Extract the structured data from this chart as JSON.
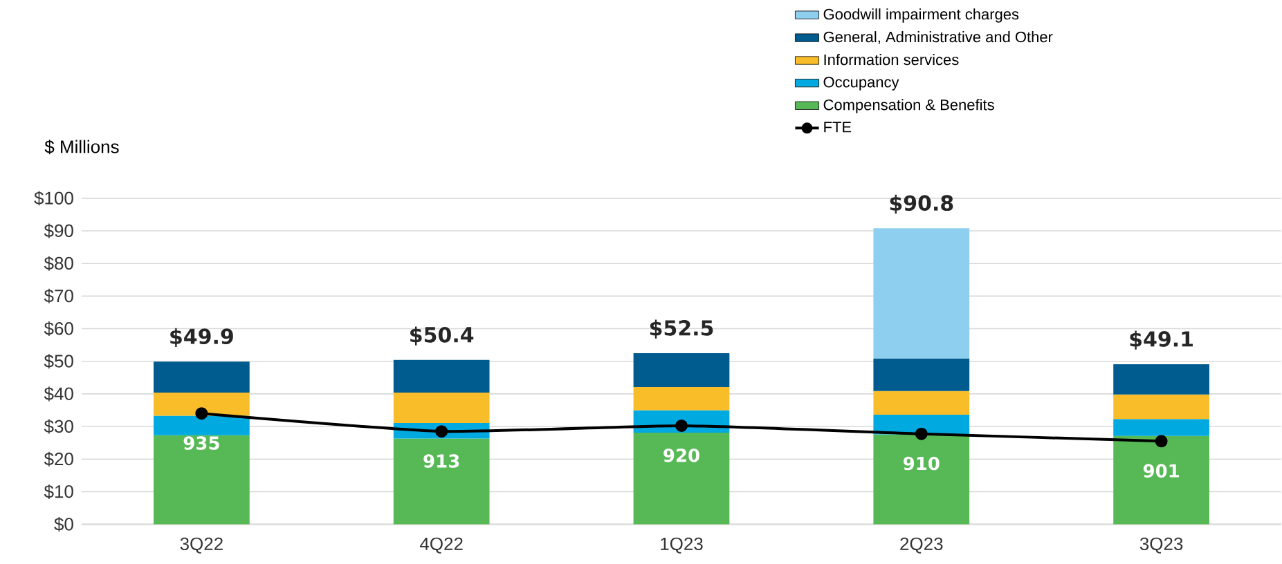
{
  "chart_data": {
    "type": "bar",
    "stacked": true,
    "ylabel": "$ Millions",
    "categories": [
      "3Q22",
      "4Q22",
      "1Q23",
      "2Q23",
      "3Q23"
    ],
    "series": [
      {
        "name": "Compensation & Benefits",
        "color": "#56b955",
        "values": [
          27.3,
          26.3,
          28.1,
          27.6,
          27.1
        ]
      },
      {
        "name": "Occupancy",
        "color": "#00a9e0",
        "values": [
          6.0,
          4.8,
          6.9,
          6.0,
          5.2
        ]
      },
      {
        "name": "Information services",
        "color": "#f9bd2a",
        "values": [
          7.1,
          9.3,
          7.1,
          7.3,
          7.5
        ]
      },
      {
        "name": "General, Administrative and Other",
        "color": "#005b8f",
        "values": [
          9.5,
          10.0,
          10.4,
          10.0,
          9.3
        ]
      },
      {
        "name": "Goodwill impairment charges",
        "color": "#8ecfef",
        "values": [
          null,
          null,
          null,
          39.9,
          null
        ]
      },
      {
        "name": "FTE",
        "type": "line",
        "axis": "y2",
        "color": "#000000",
        "marker": "circle",
        "values": [
          935,
          913,
          920,
          910,
          901
        ],
        "value_labels": [
          "935",
          "913",
          "920",
          "910",
          "901"
        ]
      }
    ],
    "totals": [
      "$49.9",
      "$50.4",
      "$52.5",
      "$90.8",
      "$49.1"
    ],
    "ylim": [
      0,
      100
    ],
    "yticks": [
      {
        "value": 0,
        "label": "$0"
      },
      {
        "value": 10,
        "label": "$10"
      },
      {
        "value": 20,
        "label": "$20"
      },
      {
        "value": 30,
        "label": "$30"
      },
      {
        "value": 40,
        "label": "$40"
      },
      {
        "value": 50,
        "label": "$50"
      },
      {
        "value": 60,
        "label": "$60"
      },
      {
        "value": 70,
        "label": "$70"
      },
      {
        "value": 80,
        "label": "$80"
      },
      {
        "value": 90,
        "label": "$90"
      },
      {
        "value": 100,
        "label": "$100"
      }
    ],
    "y2lim": [
      799,
      1199
    ],
    "tick_labels": "xy",
    "grid": "y",
    "legend": "top right"
  }
}
